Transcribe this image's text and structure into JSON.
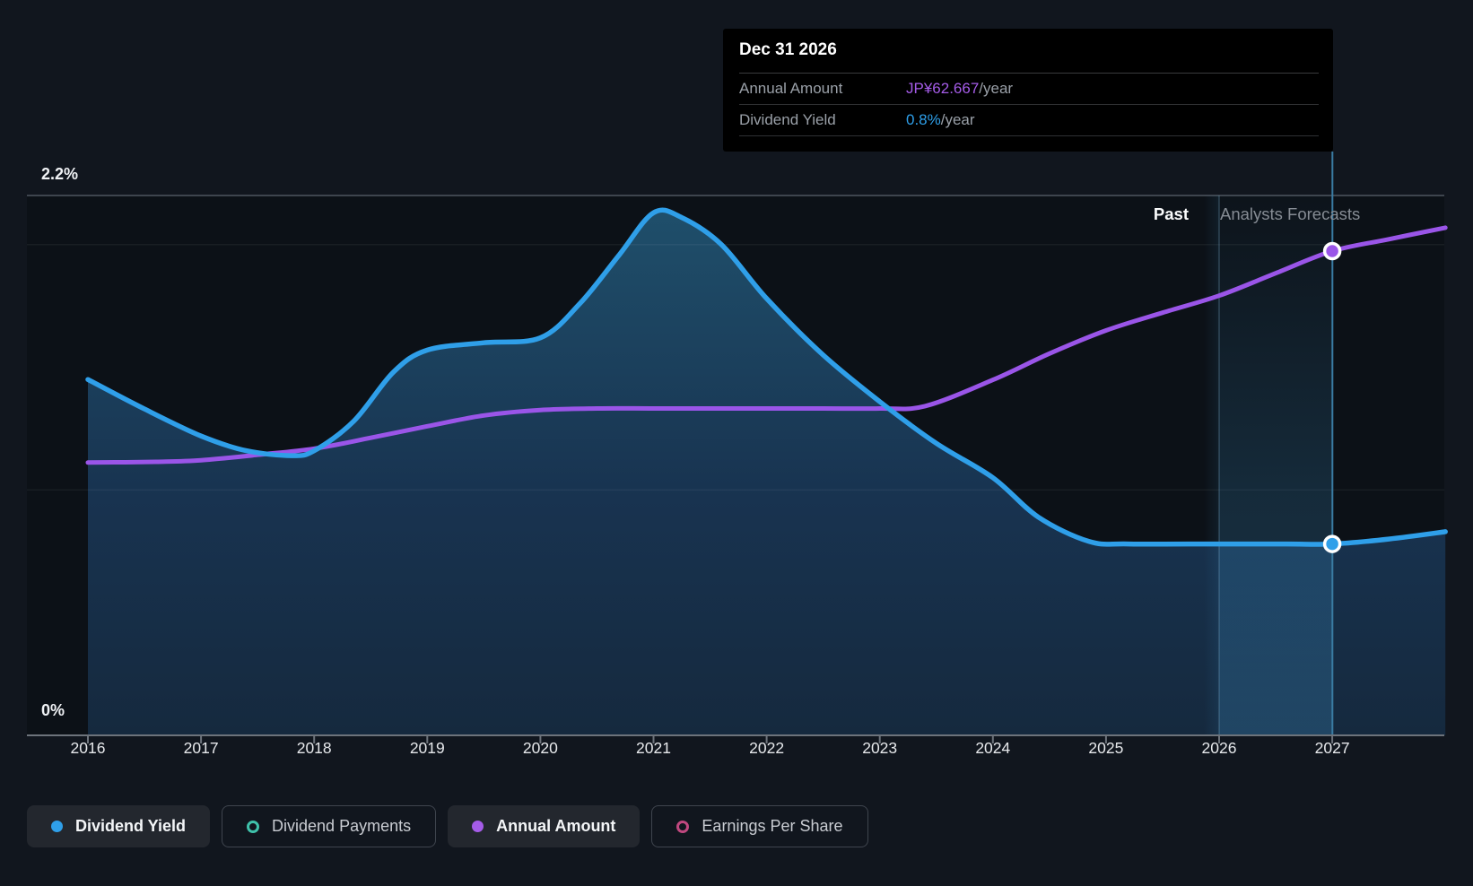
{
  "tooltip": {
    "title": "Dec 31 2026",
    "rows": [
      {
        "label": "Annual Amount",
        "value": "JP¥62.667",
        "suffix": "/year",
        "value_color": "#a55ce8"
      },
      {
        "label": "Dividend Yield",
        "value": "0.8%",
        "suffix": "/year",
        "value_color": "#2e9fe9"
      }
    ]
  },
  "zone_labels": {
    "past": "Past",
    "forecast": "Analysts Forecasts"
  },
  "legend": {
    "items": [
      {
        "label": "Dividend Yield",
        "color": "#2f9fe9",
        "style": "filled",
        "active": true
      },
      {
        "label": "Dividend Payments",
        "color": "#3fc1aa",
        "style": "ring",
        "active": false
      },
      {
        "label": "Annual Amount",
        "color": "#a55ce8",
        "style": "filled",
        "active": true
      },
      {
        "label": "Earnings Per Share",
        "color": "#c0487f",
        "style": "ring",
        "active": false
      }
    ]
  },
  "chart_data": {
    "type": "line",
    "title": "",
    "x_axis": {
      "tick_years": [
        2016,
        2017,
        2018,
        2019,
        2020,
        2021,
        2022,
        2023,
        2024,
        2025,
        2026,
        2027
      ],
      "range": [
        2015.45,
        2028.0
      ]
    },
    "yield_axis": {
      "min": 0,
      "max": 2.2,
      "top_label": "2.2%",
      "bottom_label": "0%",
      "gridlines_pct": [
        2.2,
        2.0,
        1.0,
        0
      ]
    },
    "amount_axis": {
      "min": 0,
      "unit": "JP¥/year",
      "calibration_value": 62.667,
      "calibration_year": 2027
    },
    "legend_position": "bottom",
    "grid": true,
    "forecast": {
      "divider_year": 2026,
      "band_start_year": 2025.87,
      "band_end_year": 2027,
      "hover_year": 2027
    },
    "series": [
      {
        "name": "Dividend Yield",
        "unit": "%",
        "axis": "yield",
        "color": "#2f9fe9",
        "area_fill": true,
        "x": [
          2016.0,
          2016.5,
          2017.0,
          2017.4,
          2017.8,
          2018.0,
          2018.35,
          2018.7,
          2019.0,
          2019.5,
          2020.0,
          2020.35,
          2020.7,
          2021.0,
          2021.25,
          2021.6,
          2022.0,
          2022.5,
          2023.0,
          2023.5,
          2024.0,
          2024.4,
          2024.85,
          2025.2,
          2026.0,
          2026.6,
          2027.0,
          2027.5,
          2028.0
        ],
        "values": [
          1.45,
          1.33,
          1.22,
          1.16,
          1.14,
          1.16,
          1.28,
          1.48,
          1.57,
          1.6,
          1.62,
          1.76,
          1.96,
          2.13,
          2.11,
          2.0,
          1.78,
          1.55,
          1.36,
          1.19,
          1.05,
          0.89,
          0.79,
          0.78,
          0.78,
          0.78,
          0.78,
          0.8,
          0.83
        ]
      },
      {
        "name": "Annual Amount",
        "unit": "JP¥",
        "axis": "amount",
        "color": "#9a55e8",
        "area_fill": false,
        "x": [
          2016.0,
          2016.6,
          2017.0,
          2017.5,
          2018.0,
          2018.5,
          2019.0,
          2019.5,
          2020.0,
          2020.5,
          2021.0,
          2021.5,
          2022.0,
          2022.5,
          2023.0,
          2023.4,
          2024.0,
          2024.5,
          2025.0,
          2025.5,
          2026.0,
          2026.5,
          2027.0,
          2027.5,
          2028.0
        ],
        "values": [
          35.3,
          35.4,
          35.6,
          36.3,
          37.1,
          38.5,
          40.0,
          41.4,
          42.1,
          42.3,
          42.3,
          42.3,
          42.3,
          42.3,
          42.3,
          42.6,
          46.0,
          49.4,
          52.4,
          54.7,
          56.9,
          59.8,
          62.667,
          64.2,
          65.7
        ]
      }
    ],
    "yearly_summary": {
      "years": [
        2016,
        2017,
        2018,
        2019,
        2020,
        2021,
        2022,
        2023,
        2024,
        2025,
        2026,
        2027
      ],
      "dividend_yield_pct": [
        1.45,
        1.22,
        1.16,
        1.57,
        1.62,
        2.13,
        1.78,
        1.36,
        1.05,
        0.78,
        0.78,
        0.8
      ],
      "annual_amount_jpy": [
        35.3,
        35.6,
        37.1,
        40.0,
        42.1,
        42.3,
        42.3,
        42.3,
        46.0,
        52.4,
        56.9,
        62.667
      ]
    },
    "markers": [
      {
        "series": "Annual Amount",
        "year": 2027,
        "value": 62.667
      },
      {
        "series": "Dividend Yield",
        "year": 2027,
        "value": 0.78
      }
    ]
  },
  "colors": {
    "page_bg": "#11161e",
    "plot_bg": "#0c1117",
    "blue": "#2f9fe9",
    "purple": "#9a55e8",
    "teal": "#3fc1aa",
    "pink": "#c0487f",
    "hover_line": "#3a7ca3",
    "axis_line": "#6d737b",
    "top_gridline": "#3e454e"
  }
}
